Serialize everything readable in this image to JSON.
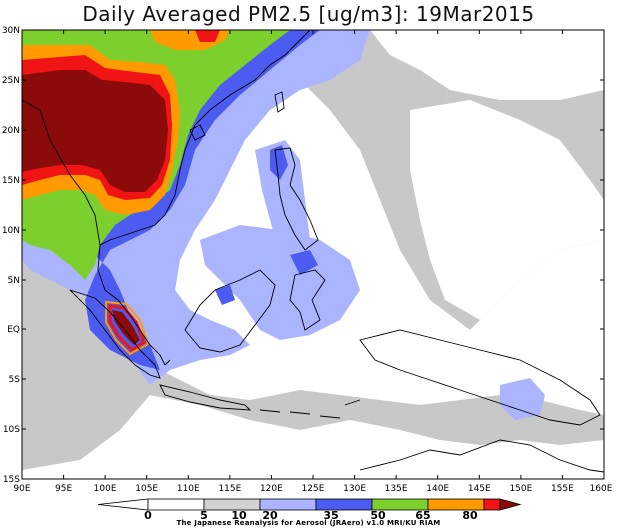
{
  "title": "Daily Averaged PM2.5 [ug/m3]: 19Mar2015",
  "lat_labels": [
    "30N",
    "25N",
    "20N",
    "15N",
    "10N",
    "5N",
    "EQ",
    "5S",
    "10S",
    "15S"
  ],
  "lon_labels": [
    "90E",
    "95E",
    "100E",
    "105E",
    "110E",
    "115E",
    "120E",
    "125E",
    "130E",
    "135E",
    "140E",
    "145E",
    "150E",
    "155E",
    "160E"
  ],
  "colorbar": {
    "levels": [
      "0",
      "5",
      "10",
      "20",
      "35",
      "50",
      "65",
      "80"
    ],
    "colors": [
      "#ffffff",
      "#d2d2d2",
      "#aab4ff",
      "#4c5cf0",
      "#7ccf2c",
      "#ff9a00",
      "#f01414",
      "#8b0a0a"
    ]
  },
  "colors": {
    "light_gray": "#c8c8c8",
    "light_blue": "#aab4ff",
    "blue": "#4c5cf0",
    "green": "#7ccf2c",
    "orange": "#ff9a00",
    "red": "#f01414",
    "dark_red": "#8b0a0a"
  },
  "credit": "The Japanese Reanalysis for Aerosol (JRAero) v1.0 MRI/KU RIAM"
}
